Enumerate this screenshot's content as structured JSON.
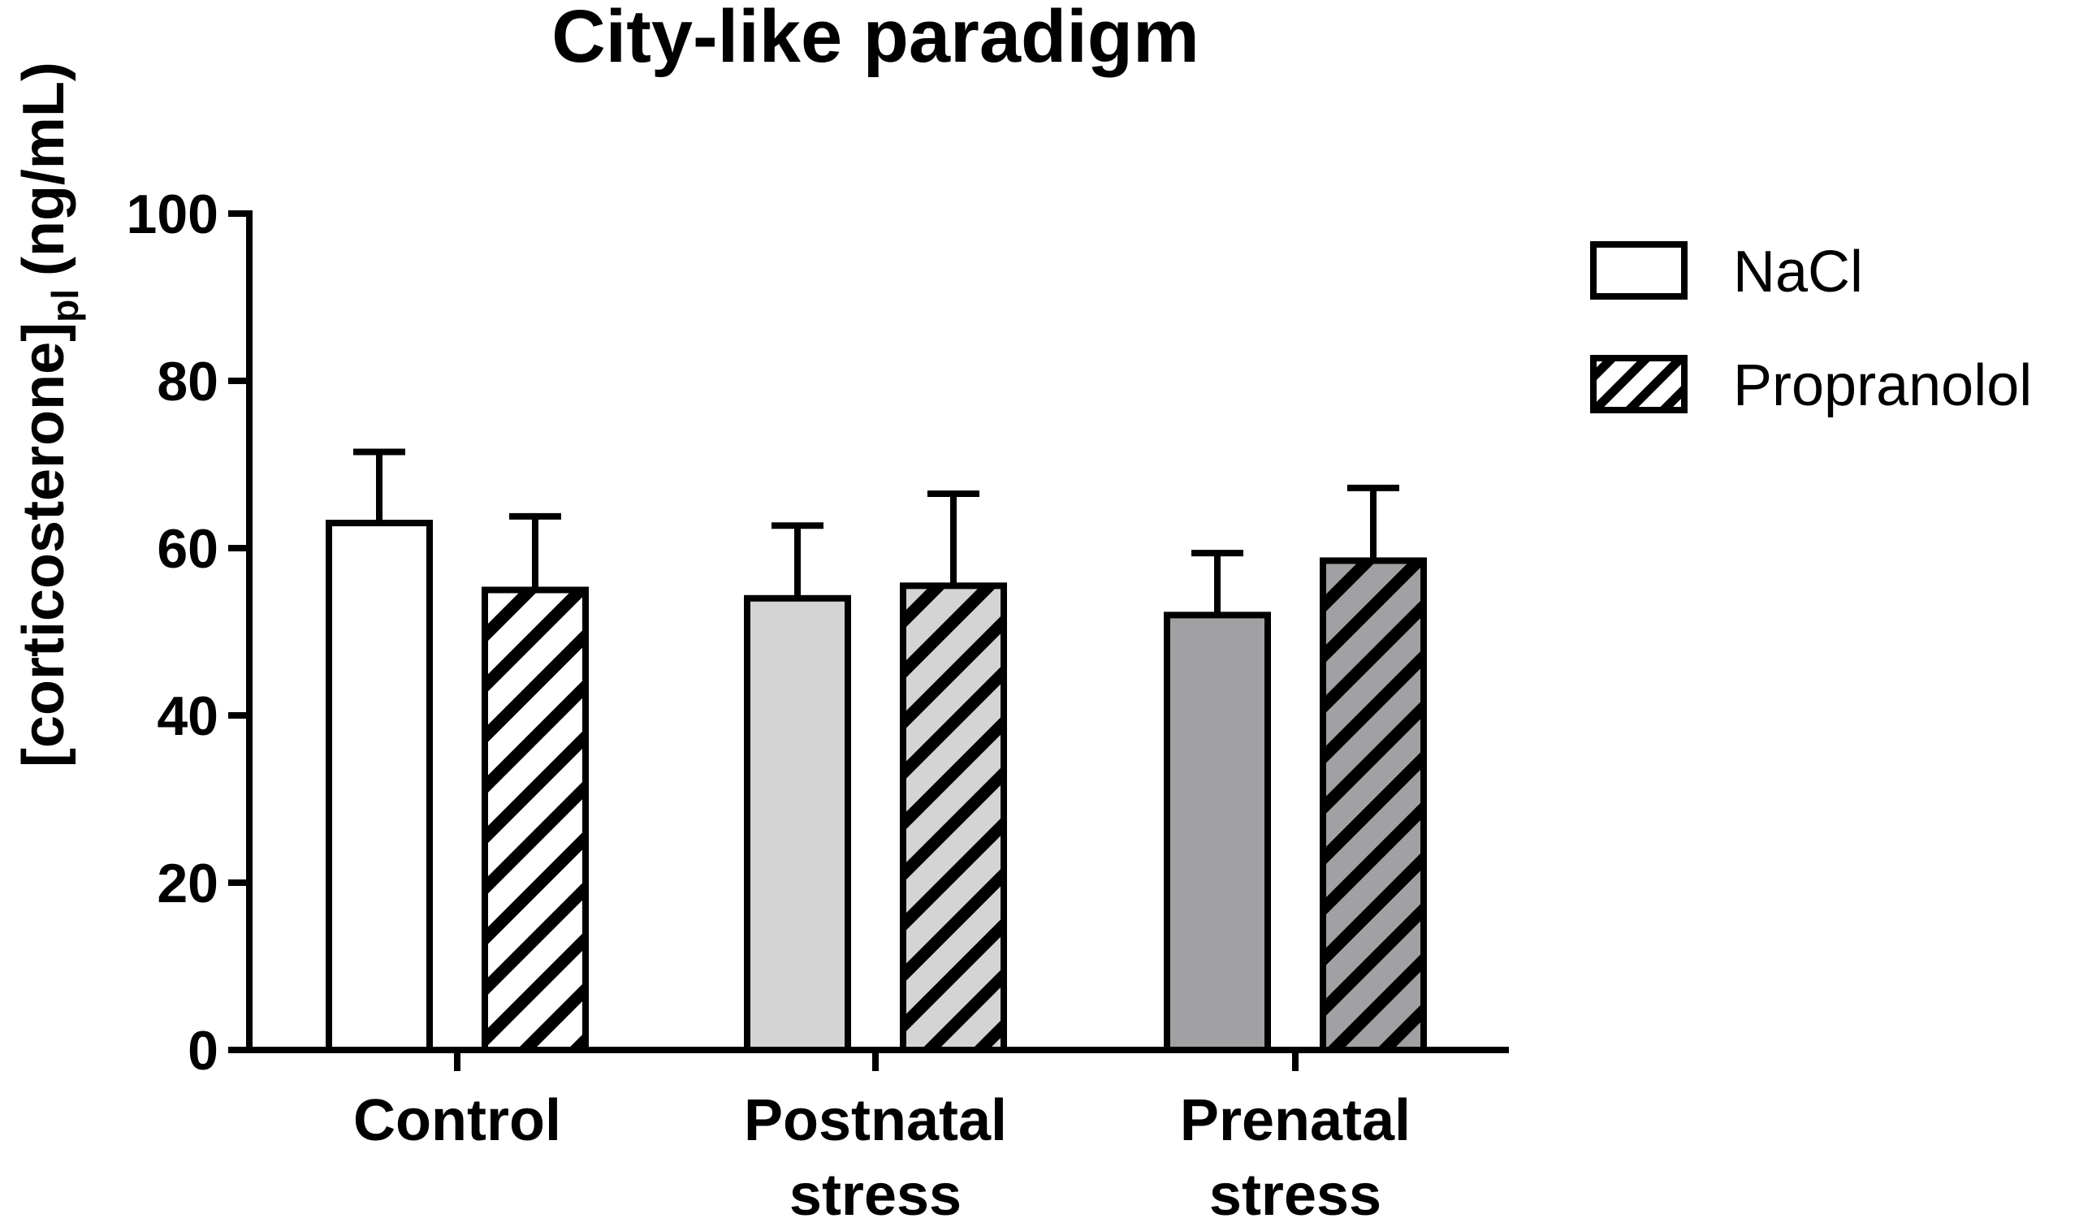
{
  "chart_data": {
    "type": "bar",
    "title": "City-like paradigm",
    "ylabel": "[corticosterone]",
    "ylabel_subscript": "pl",
    "ylabel_unit": "(ng/mL)",
    "xlabel": "",
    "ylim": [
      0,
      100
    ],
    "yticks": [
      "0",
      "20",
      "40",
      "60",
      "80",
      "100"
    ],
    "categories": [
      [
        "Control"
      ],
      [
        "Postnatal",
        "stress"
      ],
      [
        "Prenatal",
        "stress"
      ]
    ],
    "category_colors": [
      "#ffffff",
      "#d4d4d4",
      "#a1a1a4"
    ],
    "grid": false,
    "legend_position": "top-right",
    "series": [
      {
        "name": "NaCl",
        "pattern": "solid",
        "values": [
          63,
          54,
          52
        ],
        "errors": [
          8.5,
          8.7,
          7.4
        ]
      },
      {
        "name": "Propranolol",
        "pattern": "hatched",
        "values": [
          55,
          55.5,
          58.5
        ],
        "errors": [
          8.8,
          11,
          8.7
        ]
      }
    ]
  }
}
